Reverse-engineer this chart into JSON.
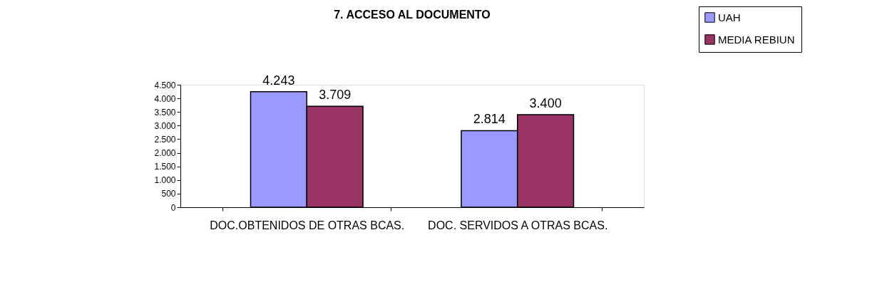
{
  "chart_data": {
    "type": "bar",
    "title": "7. ACCESO AL DOCUMENTO",
    "categories": [
      "DOC.OBTENIDOS DE OTRAS BCAS.",
      "DOC. SERVIDOS A OTRAS BCAS."
    ],
    "series": [
      {
        "name": "UAH",
        "color": "#9999ff",
        "values": [
          4243,
          2814
        ],
        "value_labels": [
          "4.243",
          "2.814"
        ]
      },
      {
        "name": "MEDIA REBIUN",
        "color": "#993366",
        "values": [
          3709,
          3400
        ],
        "value_labels": [
          "3.709",
          "3.400"
        ]
      }
    ],
    "ylim": [
      0,
      4500
    ],
    "yticks": [
      0,
      500,
      {
        "value": 1000,
        "label": "1.000"
      },
      {
        "value": 1500,
        "label": "1.500"
      },
      {
        "value": 2000,
        "label": "2.000"
      },
      {
        "value": 2500,
        "label": "2.500"
      },
      {
        "value": 3000,
        "label": "3.000"
      },
      {
        "value": 3500,
        "label": "3.500"
      },
      {
        "value": 4000,
        "label": "4.000"
      },
      {
        "value": 4500,
        "label": "4.500"
      }
    ],
    "grid": false,
    "legend": "top right"
  }
}
